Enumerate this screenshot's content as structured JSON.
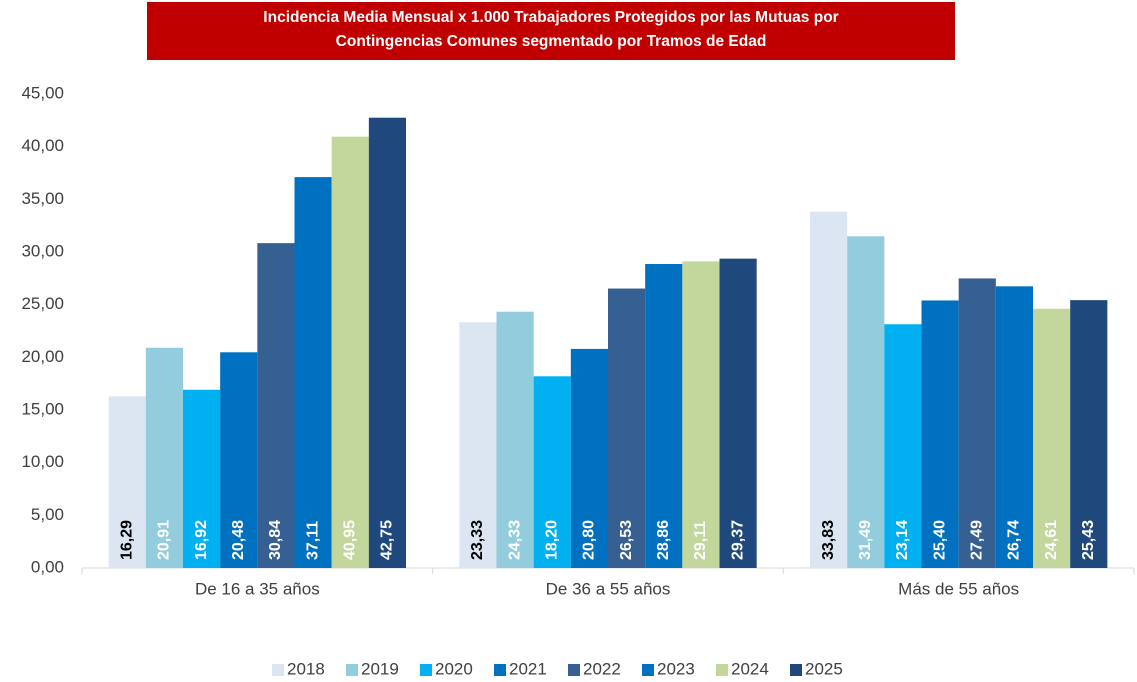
{
  "chart_data": {
    "type": "bar",
    "title": [
      "Incidencia Media Mensual x 1.000 Trabajadores Protegidos por las Mutuas por",
      "Contingencias Comunes segmentado por Tramos de Edad"
    ],
    "categories": [
      "De 16 a 35 años",
      "De 36 a 55 años",
      "Más de 55 años"
    ],
    "series": [
      {
        "name": "2018",
        "color": "#dce6f2",
        "label_color": "#000000",
        "values": [
          16.29,
          23.33,
          33.83
        ],
        "value_labels": [
          "16,29",
          "23,33",
          "33,83"
        ]
      },
      {
        "name": "2019",
        "color": "#93cddd",
        "label_color": "#ffffff",
        "values": [
          20.91,
          24.33,
          31.49
        ],
        "value_labels": [
          "20,91",
          "24,33",
          "31,49"
        ]
      },
      {
        "name": "2020",
        "color": "#00b0f0",
        "label_color": "#ffffff",
        "values": [
          16.92,
          18.2,
          23.14
        ],
        "value_labels": [
          "16,92",
          "18,20",
          "23,14"
        ]
      },
      {
        "name": "2021",
        "color": "#0070c0",
        "label_color": "#ffffff",
        "values": [
          20.48,
          20.8,
          25.4
        ],
        "value_labels": [
          "20,48",
          "20,80",
          "25,40"
        ]
      },
      {
        "name": "2022",
        "color": "#376092",
        "label_color": "#ffffff",
        "values": [
          30.84,
          26.53,
          27.49
        ],
        "value_labels": [
          "30,84",
          "26,53",
          "27,49"
        ]
      },
      {
        "name": "2023",
        "color": "#0070c0",
        "label_color": "#ffffff",
        "values": [
          37.11,
          28.86,
          26.74
        ],
        "value_labels": [
          "37,11",
          "28,86",
          "26,74"
        ]
      },
      {
        "name": "2024",
        "color": "#c3d69b",
        "label_color": "#ffffff",
        "values": [
          40.95,
          29.11,
          24.61
        ],
        "value_labels": [
          "40,95",
          "29,11",
          "24,61"
        ]
      },
      {
        "name": "2025",
        "color": "#1f497d",
        "label_color": "#ffffff",
        "values": [
          42.75,
          29.37,
          25.43
        ],
        "value_labels": [
          "42,75",
          "29,37",
          "25,43"
        ]
      }
    ],
    "ylim": [
      0,
      45
    ],
    "yticks": [
      {
        "value": 0,
        "label": "0,00"
      },
      {
        "value": 5,
        "label": "5,00"
      },
      {
        "value": 10,
        "label": "10,00"
      },
      {
        "value": 15,
        "label": "15,00"
      },
      {
        "value": 20,
        "label": "20,00"
      },
      {
        "value": 25,
        "label": "25,00"
      },
      {
        "value": 30,
        "label": "30,00"
      },
      {
        "value": 35,
        "label": "35,00"
      },
      {
        "value": 40,
        "label": "40,00"
      },
      {
        "value": 45,
        "label": "45,00"
      }
    ],
    "grid": false,
    "legend": "bottom"
  }
}
